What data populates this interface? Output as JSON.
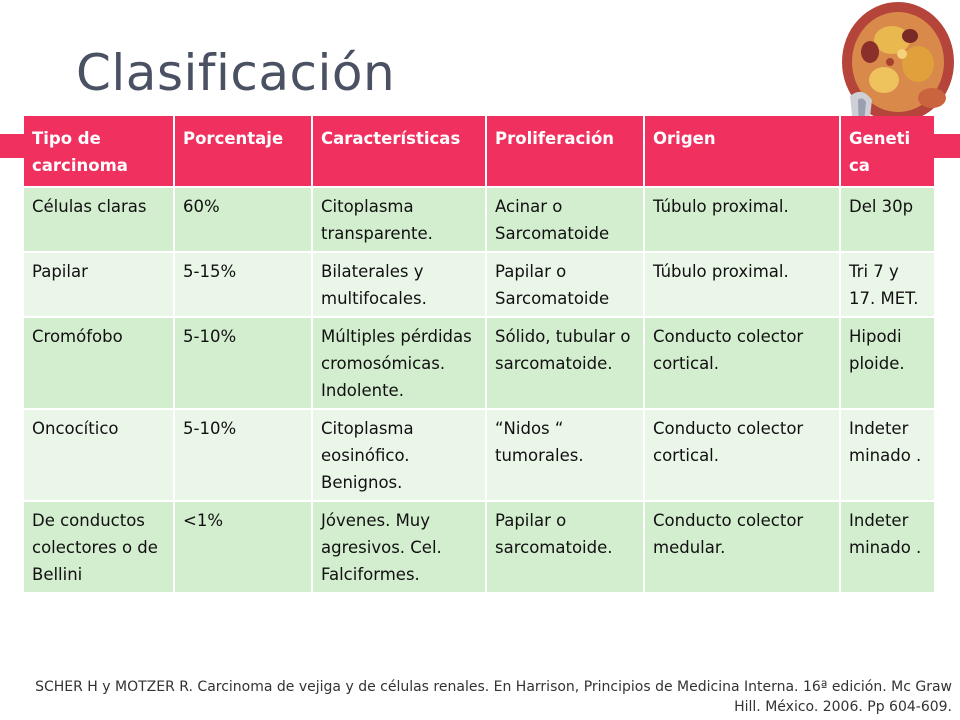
{
  "slide": {
    "title": "Clasificación",
    "accent_color": "#f0305f",
    "stripe_colors": [
      "#d3edcf",
      "#eaf6e8"
    ]
  },
  "table": {
    "headers": [
      "Tipo de carcinoma",
      "Porcentaje",
      "Características",
      "Proliferación",
      "Origen",
      "Geneti ca"
    ],
    "rows": [
      [
        "Células claras",
        "60%",
        "Citoplasma transparente.",
        "Acinar o Sarcomatoide",
        "Túbulo proximal.",
        "Del 30p"
      ],
      [
        "Papilar",
        "5-15%",
        "Bilaterales y multifocales.",
        "Papilar o Sarcomatoide",
        "Túbulo proximal.",
        "Tri 7 y 17. MET."
      ],
      [
        "Cromófobo",
        "5-10%",
        "Múltiples pérdidas cromosómicas. Indolente.",
        "Sólido, tubular o sarcomatoide.",
        "Conducto colector cortical.",
        "Hipodi ploide."
      ],
      [
        "Oncocítico",
        "5-10%",
        "Citoplasma eosinófico. Benignos.",
        "“Nidos “ tumorales.",
        "Conducto colector cortical.",
        "Indeter minado ."
      ],
      [
        "De conductos colectores o de  Bellini",
        "<1%",
        "Jóvenes. Muy agresivos.  Cel. Falciformes.",
        "Papilar o sarcomatoide.",
        "Conducto colector medular.",
        "Indeter minado ."
      ]
    ]
  },
  "reference": "SCHER H y MOTZER R. Carcinoma de vejiga y de células renales. En Harrison, Principios de Medicina Interna. 16ª edición. Mc Graw Hill.  México. 2006. Pp 604-609."
}
